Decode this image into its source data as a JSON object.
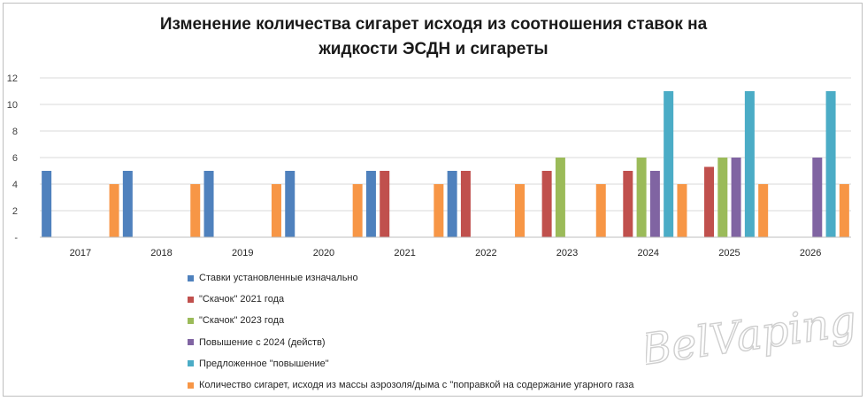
{
  "chart_data": {
    "type": "bar",
    "title_lines": [
      "Изменение количества сигарет исходя из соотношения ставок на",
      "жидкости ЭСДН и сигареты"
    ],
    "categories": [
      "2017",
      "2018",
      "2019",
      "2020",
      "2021",
      "2022",
      "2023",
      "2024",
      "2025",
      "2026"
    ],
    "yticks": [
      "-",
      "2",
      "4",
      "6",
      "8",
      "10",
      "12"
    ],
    "ylim": [
      0,
      12
    ],
    "grid": true,
    "legend_position": "bottom",
    "series": [
      {
        "name": "Ставки установленные изначально",
        "color": "#4f81bd",
        "values": [
          5,
          5,
          5,
          5,
          5,
          5,
          null,
          null,
          null,
          null
        ]
      },
      {
        "name": "\"Скачок\" 2021 года",
        "color": "#c0504d",
        "values": [
          null,
          null,
          null,
          null,
          5,
          5,
          5,
          5,
          5.3,
          null
        ]
      },
      {
        "name": "\"Скачок\" 2023 года",
        "color": "#9bbb59",
        "values": [
          null,
          null,
          null,
          null,
          null,
          null,
          6,
          6,
          6,
          null
        ]
      },
      {
        "name": "Повышение  с 2024 (действ)",
        "color": "#8064a2",
        "values": [
          null,
          null,
          null,
          null,
          null,
          null,
          null,
          5,
          6,
          6
        ]
      },
      {
        "name": "Предложенное  \"повышение\"",
        "color": "#4bacc6",
        "values": [
          null,
          null,
          null,
          null,
          null,
          null,
          null,
          11,
          11,
          11
        ]
      },
      {
        "name": "Количество сигарет, исходя из массы аэрозоля/дыма с \"поправкой на содержание угарного газа",
        "color": "#f79646",
        "values": [
          4,
          4,
          4,
          4,
          4,
          4,
          4,
          4,
          4,
          4
        ]
      }
    ]
  },
  "watermark": {
    "text": "BelVaping"
  }
}
